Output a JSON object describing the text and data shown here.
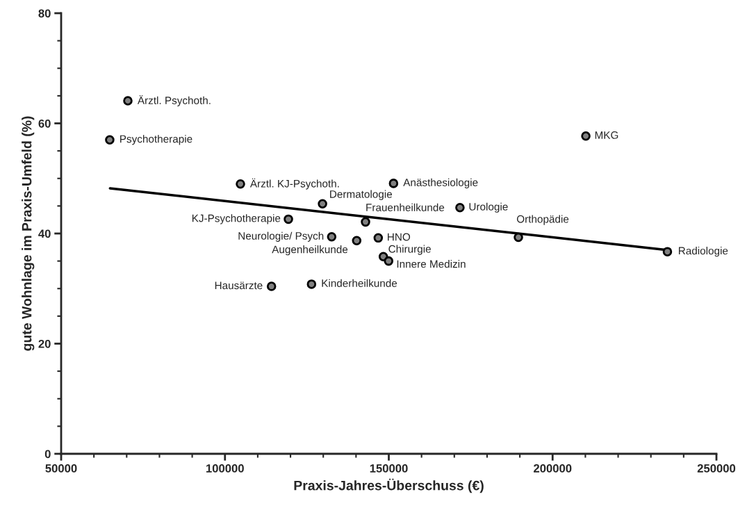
{
  "chart_data": {
    "type": "scatter",
    "xlabel": "Praxis-Jahres-Überschuss (€)",
    "ylabel": "gute Wohnlage im Praxis-Umfeld (%)",
    "xlim": [
      50000,
      250000
    ],
    "xticks": [
      50000,
      100000,
      150000,
      200000,
      250000
    ],
    "ylim": [
      0,
      80
    ],
    "yticks": [
      0,
      20,
      40,
      60,
      80
    ],
    "grid": false,
    "legend": false,
    "marker": "circle",
    "series": [
      {
        "color": "#808080",
        "x": [
          70360,
          64830,
          104720,
          129770,
          119360,
          142900,
          132570,
          140200,
          146780,
          148340,
          149950,
          114200,
          126420,
          151450,
          171720,
          210140,
          189560,
          235040
        ],
        "values": [
          64.1,
          57.0,
          49.0,
          45.4,
          42.6,
          42.1,
          39.4,
          38.7,
          39.2,
          35.8,
          35.0,
          30.4,
          30.8,
          49.1,
          44.7,
          57.7,
          39.3,
          36.7
        ]
      },
      {
        "type": "line",
        "color": "#000000",
        "line_style": "solid",
        "marker": "none",
        "x": [
          64910,
          234900
        ],
        "values": [
          48.2,
          37.0
        ]
      }
    ],
    "annotations": [
      {
        "text": "Ärztl. Psychoth.",
        "x": 70360,
        "y": 64.1
      },
      {
        "text": "Psychotherapie",
        "x": 64830,
        "y": 57.0
      },
      {
        "text": "Ärztl. KJ-Psychoth.",
        "x": 104720,
        "y": 49.0
      },
      {
        "text": "Dermatologie",
        "x": 129770,
        "y": 45.4
      },
      {
        "text": "KJ-Psychotherapie",
        "x": 119360,
        "y": 42.6
      },
      {
        "text": "Frauenheilkunde",
        "x": 142900,
        "y": 42.1
      },
      {
        "text": "Neurologie/ Psych",
        "x": 132570,
        "y": 39.4
      },
      {
        "text": "Augenheilkunde",
        "x": 140200,
        "y": 38.7
      },
      {
        "text": "HNO",
        "x": 146780,
        "y": 39.2
      },
      {
        "text": "Chirurgie",
        "x": 148340,
        "y": 35.8
      },
      {
        "text": "Innere Medizin",
        "x": 149950,
        "y": 35.0
      },
      {
        "text": "Hausärzte",
        "x": 114200,
        "y": 30.4
      },
      {
        "text": "Kinderheilkunde",
        "x": 126420,
        "y": 30.8
      },
      {
        "text": "Anästhesiologie",
        "x": 151450,
        "y": 49.1
      },
      {
        "text": "Urologie",
        "x": 171720,
        "y": 44.7
      },
      {
        "text": "MKG",
        "x": 210140,
        "y": 57.7
      },
      {
        "text": "Orthopädie",
        "x": 189560,
        "y": 39.3
      },
      {
        "text": "Radiologie",
        "x": 235040,
        "y": 36.7
      }
    ]
  }
}
